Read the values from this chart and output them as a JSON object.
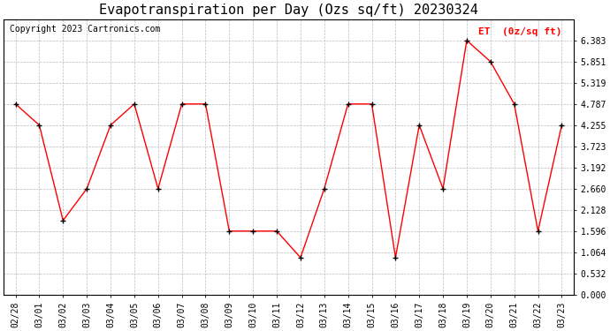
{
  "title": "Evapotranspiration per Day (Ozs sq/ft) 20230324",
  "copyright": "Copyright 2023 Cartronics.com",
  "legend_label": "ET  (0z/sq ft)",
  "dates": [
    "02/28",
    "03/01",
    "03/02",
    "03/03",
    "03/04",
    "03/05",
    "03/06",
    "03/07",
    "03/08",
    "03/09",
    "03/10",
    "03/11",
    "03/12",
    "03/13",
    "03/14",
    "03/15",
    "03/16",
    "03/17",
    "03/18",
    "03/19",
    "03/20",
    "03/21",
    "03/22",
    "03/23"
  ],
  "values": [
    4.787,
    4.255,
    1.862,
    2.66,
    4.255,
    4.787,
    2.66,
    4.787,
    4.787,
    1.596,
    1.596,
    1.596,
    0.93,
    2.66,
    4.787,
    4.787,
    0.93,
    4.255,
    2.66,
    6.383,
    5.851,
    4.787,
    1.596,
    4.255
  ],
  "yticks": [
    0.0,
    0.532,
    1.064,
    1.596,
    2.128,
    2.66,
    3.192,
    3.723,
    4.255,
    4.787,
    5.319,
    5.851,
    6.383
  ],
  "ylim": [
    0.0,
    6.916
  ],
  "line_color": "red",
  "marker": "+",
  "marker_color": "black",
  "grid_color": "#bbbbbb",
  "bg_color": "white",
  "title_fontsize": 11,
  "copyright_fontsize": 7,
  "legend_color": "red",
  "tick_fontsize": 7
}
